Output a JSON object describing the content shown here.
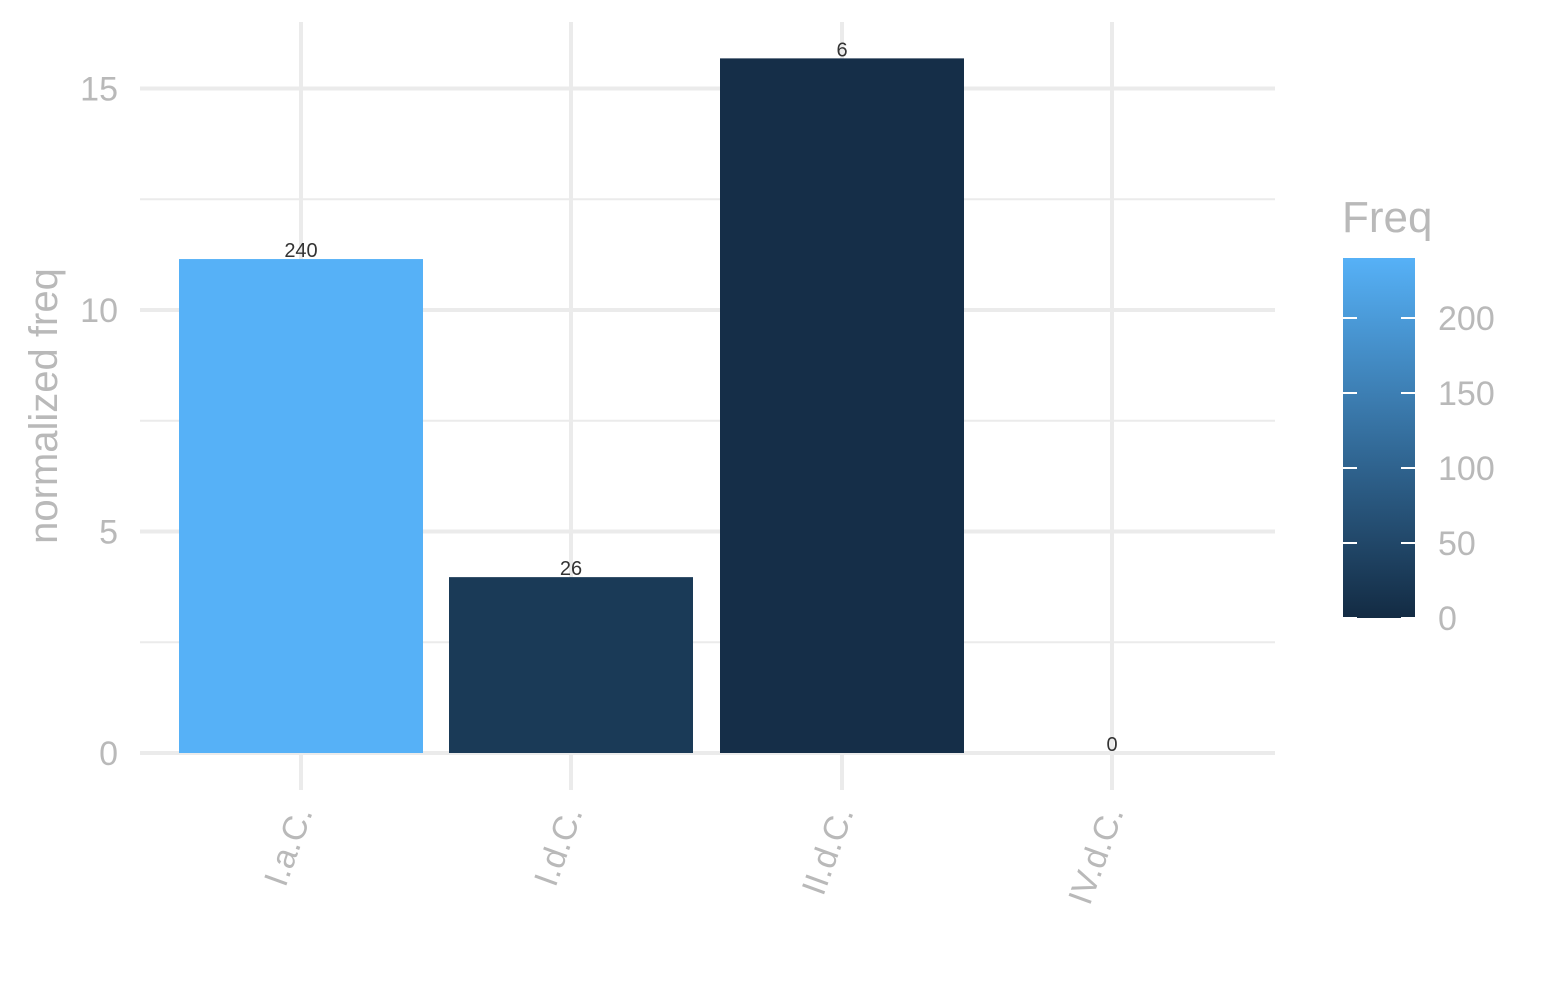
{
  "chart_data": {
    "type": "bar",
    "categories": [
      "I.a.C.",
      "I.d.C.",
      "II.d.C.",
      "IV.d.C."
    ],
    "values": [
      11.15,
      3.97,
      15.68,
      0
    ],
    "bar_labels": [
      "240",
      "26",
      "6",
      "0"
    ],
    "freq": [
      240,
      26,
      6,
      0
    ],
    "title": "",
    "xlabel": "",
    "ylabel": "normalized freq",
    "ylim": [
      0,
      16.5
    ],
    "yticks": [
      0,
      5,
      10,
      15
    ],
    "ytick_labels": [
      "0",
      "5",
      "10",
      "15"
    ],
    "grid": true,
    "legend": {
      "title": "Freq",
      "position": "right",
      "type": "colorbar",
      "range": [
        0,
        240
      ],
      "ticks": [
        0,
        50,
        100,
        150,
        200
      ],
      "tick_labels": [
        "0",
        "50",
        "100",
        "150",
        "200"
      ],
      "color_low": "#132B43",
      "color_high": "#56B1F7"
    }
  }
}
